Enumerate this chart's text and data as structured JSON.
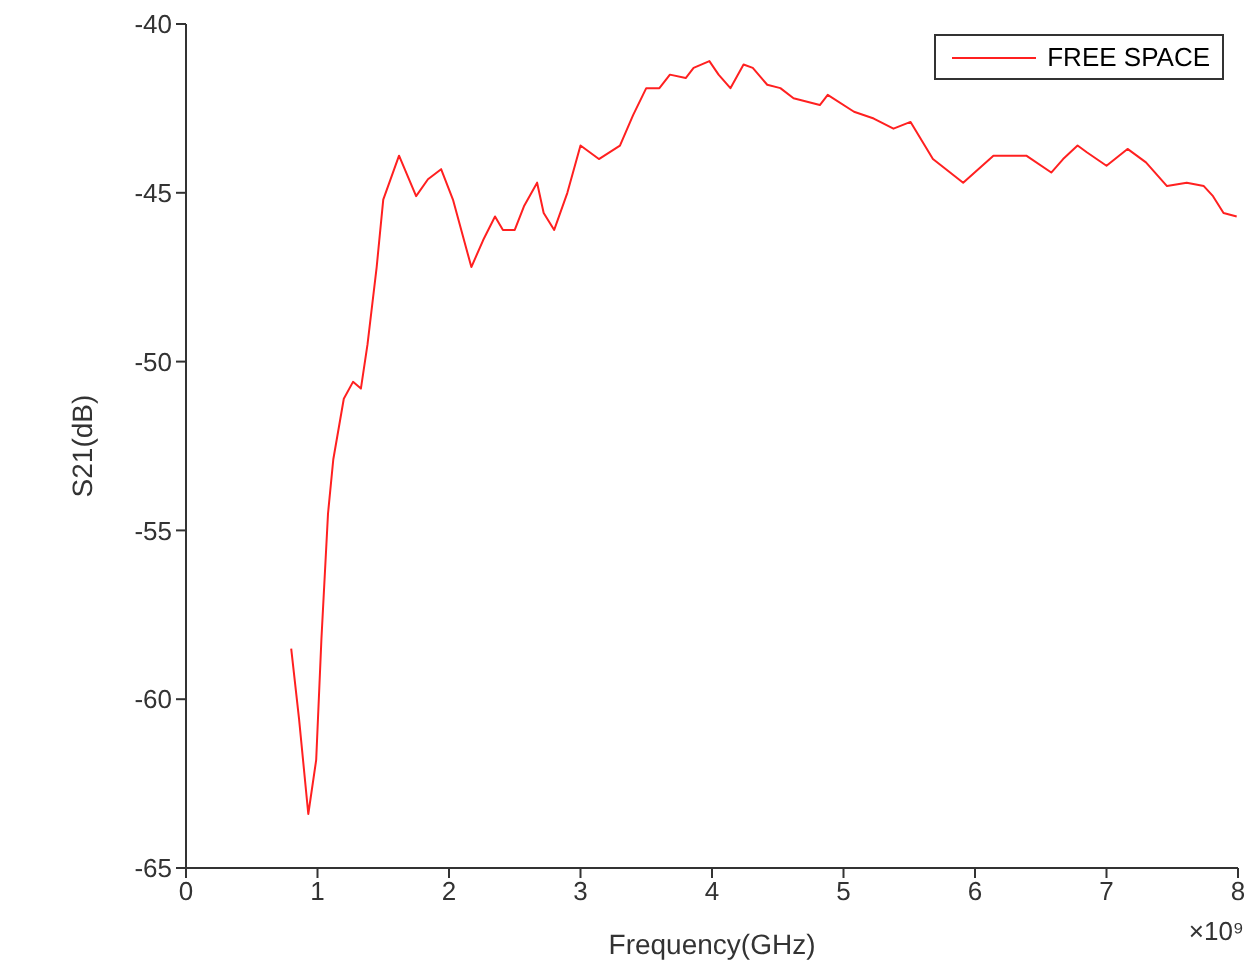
{
  "chart_data": {
    "type": "line",
    "xlabel": "Frequency(GHz)",
    "ylabel": "S21(dB)",
    "x": [
      0.8,
      0.86,
      0.93,
      0.99,
      1.03,
      1.08,
      1.12,
      1.2,
      1.27,
      1.33,
      1.38,
      1.45,
      1.5,
      1.62,
      1.75,
      1.84,
      1.94,
      2.03,
      2.17,
      2.26,
      2.35,
      2.41,
      2.5,
      2.57,
      2.67,
      2.72,
      2.8,
      2.9,
      3.0,
      3.14,
      3.3,
      3.4,
      3.5,
      3.6,
      3.68,
      3.8,
      3.86,
      3.98,
      4.05,
      4.14,
      4.24,
      4.31,
      4.42,
      4.52,
      4.62,
      4.82,
      4.88,
      5.08,
      5.23,
      5.38,
      5.51,
      5.68,
      5.91,
      6.14,
      6.39,
      6.58,
      6.67,
      6.78,
      6.85,
      7.0,
      7.16,
      7.3,
      7.46,
      7.61,
      7.74,
      7.81,
      7.89,
      7.99
    ],
    "series": [
      {
        "name": "FREE SPACE",
        "color": "#ff2020",
        "values": [
          -58.5,
          -60.6,
          -63.4,
          -61.8,
          -58.2,
          -54.5,
          -52.9,
          -51.1,
          -50.6,
          -50.8,
          -49.5,
          -47.2,
          -45.2,
          -43.9,
          -45.1,
          -44.6,
          -44.3,
          -45.2,
          -47.2,
          -46.4,
          -45.7,
          -46.1,
          -46.1,
          -45.4,
          -44.7,
          -45.6,
          -46.1,
          -45.0,
          -43.6,
          -44.0,
          -43.6,
          -42.7,
          -41.9,
          -41.9,
          -41.5,
          -41.6,
          -41.3,
          -41.1,
          -41.5,
          -41.9,
          -41.2,
          -41.3,
          -41.8,
          -41.9,
          -42.2,
          -42.4,
          -42.1,
          -42.6,
          -42.8,
          -43.1,
          -42.9,
          -44.0,
          -44.7,
          -43.9,
          -43.9,
          -44.4,
          -44.0,
          -43.6,
          -43.8,
          -44.2,
          -43.7,
          -44.1,
          -44.8,
          -44.7,
          -44.8,
          -45.1,
          -45.6,
          -45.7
        ]
      }
    ],
    "xlim": [
      0,
      8
    ],
    "xticks": [
      0,
      1,
      2,
      3,
      4,
      5,
      6,
      7,
      8
    ],
    "ylim": [
      -65,
      -40
    ],
    "yticks": [
      -65,
      -60,
      -55,
      -50,
      -45,
      -40
    ],
    "annotations": [
      "×10⁹"
    ],
    "legend": "top right",
    "grid": false,
    "marker": "none",
    "line_style": "solid"
  }
}
